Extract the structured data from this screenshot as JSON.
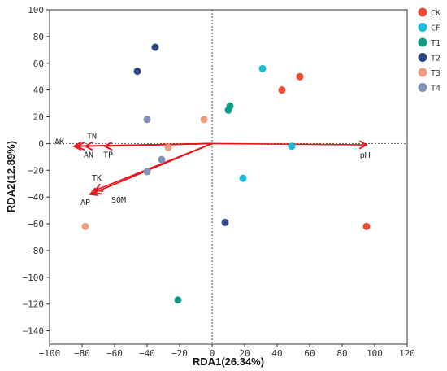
{
  "chart_data": {
    "type": "scatter",
    "xlabel": "RDA1(26.34%)",
    "ylabel": "RDA2(12.89%)",
    "xlim": [
      -100,
      120
    ],
    "ylim": [
      -150,
      100
    ],
    "xticks": [
      -100,
      -80,
      -60,
      -40,
      -20,
      0,
      20,
      40,
      60,
      80,
      100,
      120
    ],
    "yticks": [
      -140,
      -120,
      -100,
      -80,
      -60,
      -40,
      -20,
      0,
      20,
      40,
      60,
      80,
      100
    ],
    "xtick_labels": [
      "−100",
      "−80",
      "−60",
      "−40",
      "−20",
      "0",
      "20",
      "40",
      "60",
      "80",
      "100",
      "120"
    ],
    "ytick_labels": [
      "−140",
      "−120",
      "−100",
      "−80",
      "−60",
      "−40",
      "−20",
      "0",
      "20",
      "40",
      "60",
      "80",
      "100"
    ],
    "grid": false,
    "zero_lines": "dashed",
    "legend_position": "right",
    "series": [
      {
        "name": "CK",
        "color": "#ee4a34",
        "points": [
          [
            43,
            40
          ],
          [
            54,
            50
          ],
          [
            95,
            -62
          ]
        ]
      },
      {
        "name": "CF",
        "color": "#1bbdd6",
        "points": [
          [
            31,
            56
          ],
          [
            49,
            -2
          ],
          [
            19,
            -26
          ]
        ]
      },
      {
        "name": "T1",
        "color": "#139a84",
        "points": [
          [
            11,
            28
          ],
          [
            10,
            25
          ],
          [
            -21,
            -117
          ]
        ]
      },
      {
        "name": "T2",
        "color": "#2c4781",
        "points": [
          [
            -35,
            72
          ],
          [
            -46,
            54
          ],
          [
            8,
            -59
          ]
        ]
      },
      {
        "name": "T3",
        "color": "#f09c7e",
        "points": [
          [
            -5,
            18
          ],
          [
            -27,
            -3
          ],
          [
            -78,
            -62
          ]
        ]
      },
      {
        "name": "T4",
        "color": "#8091b6",
        "points": [
          [
            -40,
            18
          ],
          [
            -31,
            -12
          ],
          [
            -40,
            -21
          ]
        ]
      }
    ],
    "vectors": [
      {
        "name": "pH",
        "x": 95,
        "y": -1
      },
      {
        "name": "AK",
        "x": -85,
        "y": -2
      },
      {
        "name": "TN",
        "x": -83,
        "y": -2
      },
      {
        "name": "AN",
        "x": -78,
        "y": -2
      },
      {
        "name": "TP",
        "x": -66,
        "y": -2
      },
      {
        "name": "TK",
        "x": -72,
        "y": -35
      },
      {
        "name": "SOM",
        "x": -73,
        "y": -37
      },
      {
        "name": "AP",
        "x": -75,
        "y": -38
      }
    ],
    "vector_color": "#e8141c"
  }
}
